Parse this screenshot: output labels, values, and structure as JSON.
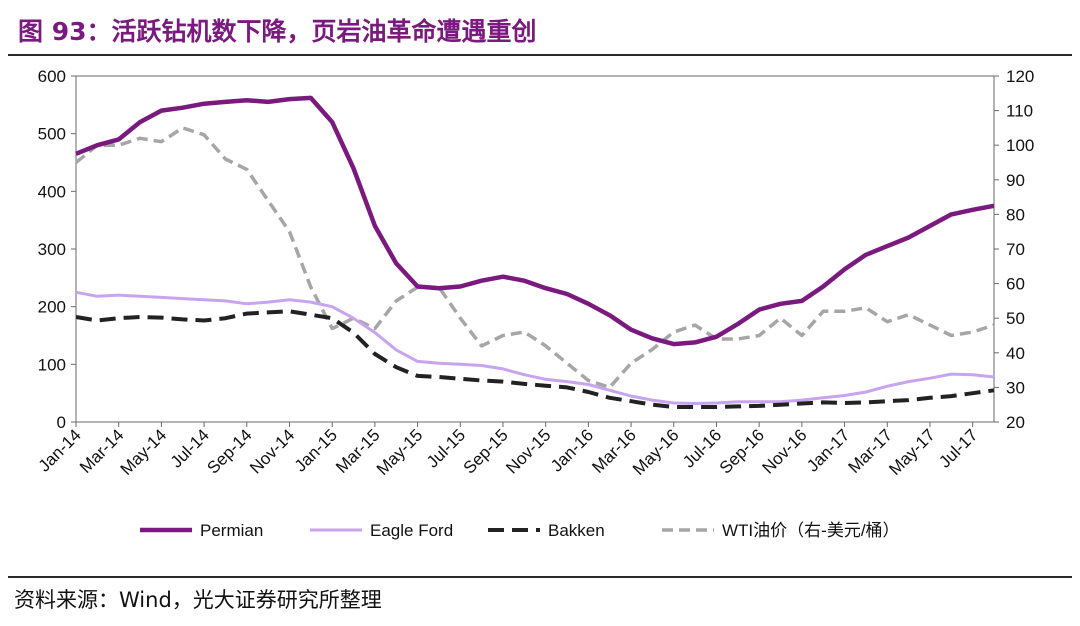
{
  "figure": {
    "title": "图 93：活跃钻机数下降，页岩油革命遭遇重创",
    "source": "资料来源：Wind，光大证券研究所整理"
  },
  "colors": {
    "title": "#7b1a7e",
    "Permian": "#7b1a7e",
    "Eagle Ford": "#c9a4ee",
    "Bakken": "#222222",
    "WTI": "#a6a6a6"
  },
  "chart_data": {
    "type": "line",
    "x_tick_labels": [
      "Jan-14",
      "Mar-14",
      "May-14",
      "Jul-14",
      "Sep-14",
      "Nov-14",
      "Jan-15",
      "Mar-15",
      "May-15",
      "Jul-15",
      "Sep-15",
      "Nov-15",
      "Jan-16",
      "Mar-16",
      "May-16",
      "Jul-16",
      "Sep-16",
      "Nov-16",
      "Jan-17",
      "Mar-17",
      "May-17",
      "Jul-17"
    ],
    "x_start": "Jan-14",
    "x_end": "Aug-17",
    "y_left": {
      "ticks": [
        "0",
        "100",
        "200",
        "300",
        "400",
        "500",
        "600"
      ],
      "range": [
        0,
        600
      ]
    },
    "y_right": {
      "ticks": [
        "20",
        "30",
        "40",
        "50",
        "60",
        "70",
        "80",
        "90",
        "100",
        "110",
        "120"
      ],
      "range": [
        20,
        120
      ]
    },
    "grid": false,
    "legend_position": "bottom",
    "series": [
      {
        "name": "Permian",
        "axis": "left",
        "style": "solid",
        "points": [
          [
            "Jan-14",
            465
          ],
          [
            "Feb-14",
            480
          ],
          [
            "Mar-14",
            490
          ],
          [
            "Apr-14",
            520
          ],
          [
            "May-14",
            540
          ],
          [
            "Jun-14",
            545
          ],
          [
            "Jul-14",
            552
          ],
          [
            "Aug-14",
            555
          ],
          [
            "Sep-14",
            558
          ],
          [
            "Oct-14",
            555
          ],
          [
            "Nov-14",
            560
          ],
          [
            "Dec-14",
            562
          ],
          [
            "Jan-15",
            520
          ],
          [
            "Feb-15",
            440
          ],
          [
            "Mar-15",
            340
          ],
          [
            "Apr-15",
            275
          ],
          [
            "May-15",
            235
          ],
          [
            "Jun-15",
            232
          ],
          [
            "Jul-15",
            235
          ],
          [
            "Aug-15",
            245
          ],
          [
            "Sep-15",
            252
          ],
          [
            "Oct-15",
            245
          ],
          [
            "Nov-15",
            232
          ],
          [
            "Dec-15",
            222
          ],
          [
            "Jan-16",
            205
          ],
          [
            "Feb-16",
            185
          ],
          [
            "Mar-16",
            160
          ],
          [
            "Apr-16",
            145
          ],
          [
            "May-16",
            135
          ],
          [
            "Jun-16",
            138
          ],
          [
            "Jul-16",
            148
          ],
          [
            "Aug-16",
            170
          ],
          [
            "Sep-16",
            195
          ],
          [
            "Oct-16",
            205
          ],
          [
            "Nov-16",
            210
          ],
          [
            "Dec-16",
            235
          ],
          [
            "Jan-17",
            265
          ],
          [
            "Feb-17",
            290
          ],
          [
            "Mar-17",
            305
          ],
          [
            "Apr-17",
            320
          ],
          [
            "May-17",
            340
          ],
          [
            "Jun-17",
            360
          ],
          [
            "Jul-17",
            368
          ],
          [
            "Aug-17",
            375
          ]
        ]
      },
      {
        "name": "Eagle Ford",
        "axis": "left",
        "style": "solid",
        "points": [
          [
            "Jan-14",
            225
          ],
          [
            "Feb-14",
            218
          ],
          [
            "Mar-14",
            220
          ],
          [
            "Apr-14",
            218
          ],
          [
            "May-14",
            216
          ],
          [
            "Jun-14",
            214
          ],
          [
            "Jul-14",
            212
          ],
          [
            "Aug-14",
            210
          ],
          [
            "Sep-14",
            205
          ],
          [
            "Oct-14",
            208
          ],
          [
            "Nov-14",
            212
          ],
          [
            "Dec-14",
            208
          ],
          [
            "Jan-15",
            200
          ],
          [
            "Feb-15",
            180
          ],
          [
            "Mar-15",
            155
          ],
          [
            "Apr-15",
            125
          ],
          [
            "May-15",
            105
          ],
          [
            "Jun-15",
            102
          ],
          [
            "Jul-15",
            100
          ],
          [
            "Aug-15",
            98
          ],
          [
            "Sep-15",
            92
          ],
          [
            "Oct-15",
            82
          ],
          [
            "Nov-15",
            74
          ],
          [
            "Dec-15",
            70
          ],
          [
            "Jan-16",
            65
          ],
          [
            "Feb-16",
            55
          ],
          [
            "Mar-16",
            45
          ],
          [
            "Apr-16",
            38
          ],
          [
            "May-16",
            33
          ],
          [
            "Jun-16",
            32
          ],
          [
            "Jul-16",
            33
          ],
          [
            "Aug-16",
            35
          ],
          [
            "Sep-16",
            35
          ],
          [
            "Oct-16",
            35
          ],
          [
            "Nov-16",
            38
          ],
          [
            "Dec-16",
            42
          ],
          [
            "Jan-17",
            46
          ],
          [
            "Feb-17",
            52
          ],
          [
            "Mar-17",
            62
          ],
          [
            "Apr-17",
            70
          ],
          [
            "May-17",
            76
          ],
          [
            "Jun-17",
            83
          ],
          [
            "Jul-17",
            82
          ],
          [
            "Aug-17",
            78
          ]
        ]
      },
      {
        "name": "Bakken",
        "axis": "left",
        "style": "dash",
        "points": [
          [
            "Jan-14",
            182
          ],
          [
            "Feb-14",
            176
          ],
          [
            "Mar-14",
            180
          ],
          [
            "Apr-14",
            182
          ],
          [
            "May-14",
            181
          ],
          [
            "Jun-14",
            178
          ],
          [
            "Jul-14",
            176
          ],
          [
            "Aug-14",
            180
          ],
          [
            "Sep-14",
            188
          ],
          [
            "Oct-14",
            190
          ],
          [
            "Nov-14",
            192
          ],
          [
            "Dec-14",
            186
          ],
          [
            "Jan-15",
            180
          ],
          [
            "Feb-15",
            155
          ],
          [
            "Mar-15",
            118
          ],
          [
            "Apr-15",
            95
          ],
          [
            "May-15",
            80
          ],
          [
            "Jun-15",
            78
          ],
          [
            "Jul-15",
            75
          ],
          [
            "Aug-15",
            72
          ],
          [
            "Sep-15",
            70
          ],
          [
            "Oct-15",
            66
          ],
          [
            "Nov-15",
            63
          ],
          [
            "Dec-15",
            60
          ],
          [
            "Jan-16",
            52
          ],
          [
            "Feb-16",
            42
          ],
          [
            "Mar-16",
            36
          ],
          [
            "Apr-16",
            30
          ],
          [
            "May-16",
            26
          ],
          [
            "Jun-16",
            26
          ],
          [
            "Jul-16",
            26
          ],
          [
            "Aug-16",
            27
          ],
          [
            "Sep-16",
            28
          ],
          [
            "Oct-16",
            30
          ],
          [
            "Nov-16",
            32
          ],
          [
            "Dec-16",
            34
          ],
          [
            "Jan-17",
            33
          ],
          [
            "Feb-17",
            34
          ],
          [
            "Mar-17",
            36
          ],
          [
            "Apr-17",
            38
          ],
          [
            "May-17",
            42
          ],
          [
            "Jun-17",
            45
          ],
          [
            "Jul-17",
            50
          ],
          [
            "Aug-17",
            55
          ]
        ]
      },
      {
        "name": "WTI油价（右-美元/桶）",
        "axis": "right",
        "style": "dash",
        "points": [
          [
            "Jan-14",
            95
          ],
          [
            "Feb-14",
            100
          ],
          [
            "Mar-14",
            100
          ],
          [
            "Apr-14",
            102
          ],
          [
            "May-14",
            101
          ],
          [
            "Jun-14",
            105
          ],
          [
            "Jul-14",
            103
          ],
          [
            "Aug-14",
            96
          ],
          [
            "Sep-14",
            93
          ],
          [
            "Oct-14",
            84
          ],
          [
            "Nov-14",
            75
          ],
          [
            "Dec-14",
            59
          ],
          [
            "Jan-15",
            47
          ],
          [
            "Feb-15",
            50
          ],
          [
            "Mar-15",
            47
          ],
          [
            "Apr-15",
            55
          ],
          [
            "May-15",
            59
          ],
          [
            "Jun-15",
            59
          ],
          [
            "Jul-15",
            50
          ],
          [
            "Aug-15",
            42
          ],
          [
            "Sep-15",
            45
          ],
          [
            "Oct-15",
            46
          ],
          [
            "Nov-15",
            42
          ],
          [
            "Dec-15",
            37
          ],
          [
            "Jan-16",
            32
          ],
          [
            "Feb-16",
            30
          ],
          [
            "Mar-16",
            37
          ],
          [
            "Apr-16",
            41
          ],
          [
            "May-16",
            46
          ],
          [
            "Jun-16",
            48
          ],
          [
            "Jul-16",
            44
          ],
          [
            "Aug-16",
            44
          ],
          [
            "Sep-16",
            45
          ],
          [
            "Oct-16",
            50
          ],
          [
            "Nov-16",
            45
          ],
          [
            "Dec-16",
            52
          ],
          [
            "Jan-17",
            52
          ],
          [
            "Feb-17",
            53
          ],
          [
            "Mar-17",
            49
          ],
          [
            "Apr-17",
            51
          ],
          [
            "May-17",
            48
          ],
          [
            "Jun-17",
            45
          ],
          [
            "Jul-17",
            46
          ],
          [
            "Aug-17",
            48
          ]
        ]
      }
    ]
  }
}
